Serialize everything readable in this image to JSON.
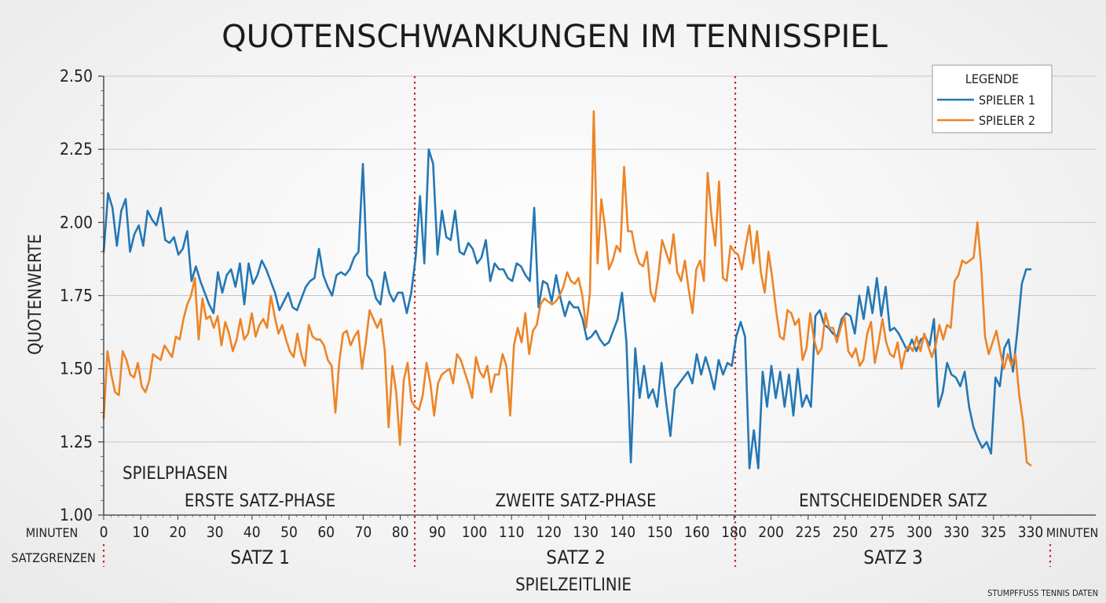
{
  "chart_data": {
    "type": "line",
    "title": "QUOTENSCHWANKUNGEN IM TENNISSPIEL",
    "ylabel": "QUOTENWERTE",
    "xlabel": "SPIELZEITLINIE",
    "ylim": [
      1.0,
      2.5
    ],
    "yticks": [
      "2.50",
      "2.25",
      "2.00",
      "1.75",
      "1.50",
      "1.25",
      "1.00"
    ],
    "x_unit_label": "MINUTEN",
    "x_tick_labels": [
      "0",
      "10",
      "20",
      "30",
      "40",
      "50",
      "60",
      "70",
      "80",
      "90",
      "100",
      "110",
      "120",
      "130",
      "140",
      "150",
      "160",
      "180",
      "200",
      "225",
      "250",
      "275",
      "300",
      "330",
      "325",
      "330"
    ],
    "grid": true,
    "legend": {
      "title": "LEGENDE",
      "position": "top-right"
    },
    "phases_label": "SPIELPHASEN",
    "phases": [
      "ERSTE SATZ-PHASE",
      "ZWEITE SATZ-PHASE",
      "ENTSCHEIDENDER SATZ"
    ],
    "set_bounds_label": "SATZGRENZEN",
    "sets": [
      "SATZ 1",
      "SATZ 2",
      "SATZ 3"
    ],
    "source": "STUMPFFUSS TENNIS DATEN",
    "series": [
      {
        "name": "SPIELER 1",
        "color": "#2477b4",
        "values": [
          1.9,
          2.1,
          2.05,
          1.92,
          2.04,
          2.08,
          1.9,
          1.96,
          1.99,
          1.92,
          2.04,
          2.01,
          1.99,
          2.05,
          1.94,
          1.93,
          1.95,
          1.89,
          1.91,
          1.97,
          1.8,
          1.85,
          1.8,
          1.76,
          1.72,
          1.69,
          1.83,
          1.76,
          1.82,
          1.84,
          1.78,
          1.86,
          1.72,
          1.86,
          1.79,
          1.82,
          1.87,
          1.84,
          1.8,
          1.76,
          1.7,
          1.73,
          1.76,
          1.71,
          1.7,
          1.74,
          1.78,
          1.8,
          1.81,
          1.91,
          1.82,
          1.78,
          1.75,
          1.82,
          1.83,
          1.82,
          1.84,
          1.88,
          1.9,
          2.2,
          1.82,
          1.8,
          1.74,
          1.72,
          1.83,
          1.76,
          1.73,
          1.76,
          1.76,
          1.69,
          1.76,
          1.88,
          2.09,
          1.86,
          2.25,
          2.2,
          1.89,
          2.04,
          1.95,
          1.94,
          2.04,
          1.9,
          1.89,
          1.93,
          1.91,
          1.86,
          1.88,
          1.94,
          1.8,
          1.86,
          1.84,
          1.84,
          1.81,
          1.8,
          1.86,
          1.85,
          1.82,
          1.8,
          2.05,
          1.71,
          1.8,
          1.79,
          1.73,
          1.82,
          1.74,
          1.68,
          1.73,
          1.71,
          1.71,
          1.67,
          1.6,
          1.61,
          1.63,
          1.6,
          1.58,
          1.59,
          1.63,
          1.67,
          1.76,
          1.59,
          1.18,
          1.57,
          1.4,
          1.51,
          1.4,
          1.43,
          1.37,
          1.52,
          1.39,
          1.27,
          1.43,
          1.45,
          1.47,
          1.49,
          1.45,
          1.55,
          1.48,
          1.54,
          1.49,
          1.43,
          1.53,
          1.48,
          1.52,
          1.51,
          1.61,
          1.66,
          1.61,
          1.16,
          1.29,
          1.16,
          1.49,
          1.37,
          1.51,
          1.4,
          1.49,
          1.37,
          1.48,
          1.34,
          1.5,
          1.37,
          1.41,
          1.37,
          1.68,
          1.7,
          1.65,
          1.64,
          1.62,
          1.61,
          1.67,
          1.69,
          1.68,
          1.62,
          1.75,
          1.67,
          1.78,
          1.69,
          1.81,
          1.68,
          1.78,
          1.63,
          1.64,
          1.62,
          1.59,
          1.56,
          1.6,
          1.56,
          1.6,
          1.61,
          1.58,
          1.67,
          1.37,
          1.42,
          1.52,
          1.48,
          1.47,
          1.44,
          1.49,
          1.37,
          1.3,
          1.26,
          1.23,
          1.25,
          1.21,
          1.47,
          1.44,
          1.57,
          1.6,
          1.49,
          1.63,
          1.79,
          1.84,
          1.84
        ]
      },
      {
        "name": "SPIELER 2",
        "color": "#ee8426",
        "values": [
          1.33,
          1.56,
          1.48,
          1.42,
          1.41,
          1.56,
          1.53,
          1.48,
          1.47,
          1.52,
          1.44,
          1.42,
          1.46,
          1.55,
          1.54,
          1.53,
          1.58,
          1.56,
          1.54,
          1.61,
          1.6,
          1.67,
          1.72,
          1.75,
          1.81,
          1.6,
          1.74,
          1.67,
          1.68,
          1.64,
          1.68,
          1.58,
          1.66,
          1.62,
          1.56,
          1.6,
          1.67,
          1.6,
          1.62,
          1.69,
          1.61,
          1.65,
          1.67,
          1.64,
          1.75,
          1.68,
          1.62,
          1.65,
          1.6,
          1.56,
          1.54,
          1.62,
          1.55,
          1.51,
          1.65,
          1.61,
          1.6,
          1.6,
          1.58,
          1.53,
          1.51,
          1.35,
          1.52,
          1.62,
          1.63,
          1.58,
          1.61,
          1.63,
          1.5,
          1.59,
          1.7,
          1.67,
          1.64,
          1.67,
          1.56,
          1.3,
          1.51,
          1.42,
          1.24,
          1.46,
          1.52,
          1.39,
          1.37,
          1.36,
          1.41,
          1.52,
          1.45,
          1.34,
          1.45,
          1.48,
          1.49,
          1.5,
          1.45,
          1.55,
          1.53,
          1.49,
          1.45,
          1.4,
          1.54,
          1.49,
          1.47,
          1.51,
          1.42,
          1.48,
          1.48,
          1.55,
          1.51,
          1.34,
          1.58,
          1.64,
          1.59,
          1.69,
          1.55,
          1.63,
          1.65,
          1.72,
          1.74,
          1.73,
          1.72,
          1.73,
          1.75,
          1.78,
          1.83,
          1.8,
          1.79,
          1.81,
          1.75,
          1.64,
          1.76,
          2.38,
          1.86,
          2.08,
          1.98,
          1.84,
          1.87,
          1.92,
          1.9,
          2.19,
          1.97,
          1.97,
          1.9,
          1.86,
          1.85,
          1.9,
          1.76,
          1.73,
          1.82,
          1.94,
          1.9,
          1.86,
          1.96,
          1.83,
          1.8,
          1.87,
          1.77,
          1.69,
          1.84,
          1.87,
          1.8,
          2.17,
          2.02,
          1.92,
          2.14,
          1.81,
          1.8,
          1.92,
          1.9,
          1.89,
          1.84,
          1.92,
          1.99,
          1.86,
          1.97,
          1.83,
          1.76,
          1.9,
          1.81,
          1.7,
          1.61,
          1.6,
          1.7,
          1.69,
          1.65,
          1.67,
          1.53,
          1.57,
          1.69,
          1.6,
          1.55,
          1.57,
          1.69,
          1.64,
          1.64,
          1.59,
          1.64,
          1.68,
          1.56,
          1.54,
          1.57,
          1.51,
          1.53,
          1.62,
          1.66,
          1.52,
          1.59,
          1.67,
          1.59,
          1.55,
          1.54,
          1.59,
          1.5,
          1.56,
          1.58,
          1.56,
          1.61,
          1.56,
          1.62,
          1.58,
          1.54,
          1.58,
          1.65,
          1.6,
          1.65,
          1.64,
          1.8,
          1.82,
          1.87,
          1.86,
          1.87,
          1.88,
          2.0,
          1.85,
          1.61,
          1.55,
          1.59,
          1.63,
          1.56,
          1.5,
          1.55,
          1.51,
          1.55,
          1.41,
          1.32,
          1.18,
          1.17
        ]
      }
    ]
  }
}
